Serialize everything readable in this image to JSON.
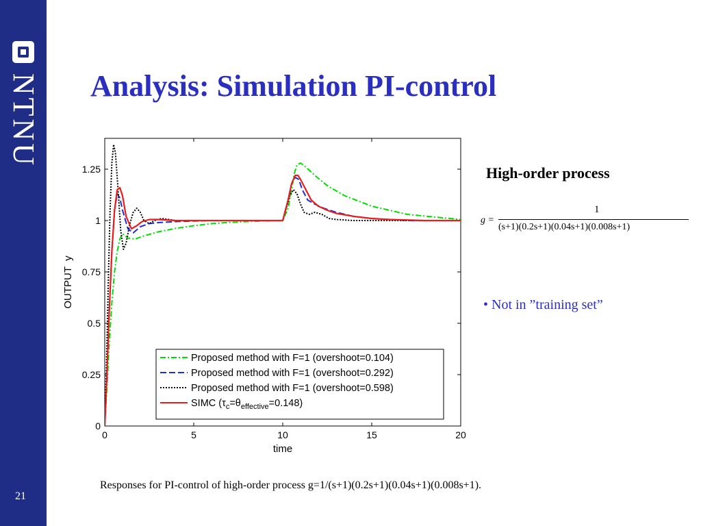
{
  "slide": {
    "title": "Analysis: Simulation PI-control",
    "page_number": "21",
    "logo_text": "NTNU"
  },
  "side_panel": {
    "heading": "High-order process",
    "formula": {
      "lhs": "g =",
      "numerator": "1",
      "denominator": "(s+1)(0.2s+1)(0.04s+1)(0.008s+1)"
    },
    "bullet": "• Not in ”training set”"
  },
  "caption": "Responses for PI-control of high-order process g=1/(s+1)(0.2s+1)(0.04s+1)(0.008s+1).",
  "chart_data": {
    "type": "line",
    "title": "",
    "xlabel": "time",
    "ylabel": "OUTPUT  y",
    "xlim": [
      0,
      20
    ],
    "ylim": [
      0,
      1.4
    ],
    "xticks": [
      0,
      5,
      10,
      15,
      20
    ],
    "xtick_labels": [
      "0",
      "5",
      "10",
      "15",
      "20"
    ],
    "yticks": [
      0,
      0.25,
      0.5,
      0.75,
      1,
      1.25
    ],
    "ytick_labels": [
      "0",
      "0.25",
      "0.5",
      "0.75",
      "1",
      "1.25"
    ],
    "grid": false,
    "legend_position": "bottom-right",
    "series": [
      {
        "name": "Proposed method with F=1 (overshoot=0.104)",
        "color": "#00dd00",
        "dash": "dashdot",
        "x": [
          0,
          0.1,
          0.25,
          0.4,
          0.55,
          0.7,
          0.85,
          1.0,
          1.3,
          1.7,
          2.2,
          3,
          4,
          5,
          6,
          7,
          8,
          9,
          10,
          10.3,
          10.5,
          10.65,
          10.8,
          11.0,
          11.3,
          11.8,
          12.5,
          13.5,
          15,
          17,
          20
        ],
        "y": [
          0,
          0.15,
          0.4,
          0.6,
          0.75,
          0.85,
          0.91,
          0.935,
          0.915,
          0.91,
          0.925,
          0.945,
          0.962,
          0.975,
          0.985,
          0.991,
          0.995,
          0.998,
          1.0,
          1.06,
          1.15,
          1.23,
          1.27,
          1.28,
          1.26,
          1.22,
          1.17,
          1.12,
          1.07,
          1.03,
          1.005
        ]
      },
      {
        "name": "Proposed method with F=1 (overshoot=0.292)",
        "color": "#1f2dd6",
        "dash": "dashed",
        "x": [
          0,
          0.1,
          0.25,
          0.4,
          0.55,
          0.7,
          0.85,
          1.0,
          1.3,
          1.6,
          2.0,
          2.5,
          3,
          4,
          6,
          8,
          10,
          10.3,
          10.5,
          10.7,
          10.9,
          11.1,
          11.4,
          11.8,
          12.3,
          13,
          14,
          15,
          17,
          20
        ],
        "y": [
          0,
          0.2,
          0.55,
          0.85,
          1.05,
          1.13,
          1.11,
          1.05,
          0.96,
          0.94,
          0.97,
          0.985,
          0.99,
          0.995,
          1.0,
          1.0,
          1.0,
          1.1,
          1.18,
          1.21,
          1.2,
          1.15,
          1.1,
          1.08,
          1.06,
          1.04,
          1.02,
          1.01,
          1.0,
          1.0
        ]
      },
      {
        "name": "Proposed method with F=1 (overshoot=0.598)",
        "color": "#000000",
        "dash": "dotted",
        "x": [
          0,
          0.1,
          0.2,
          0.3,
          0.4,
          0.5,
          0.6,
          0.75,
          0.9,
          1.05,
          1.2,
          1.4,
          1.6,
          1.8,
          2.0,
          2.2,
          2.5,
          2.8,
          3.2,
          3.6,
          4,
          5,
          6,
          8,
          10,
          10.2,
          10.4,
          10.6,
          10.8,
          11.0,
          11.2,
          11.5,
          11.8,
          12.2,
          12.6,
          13,
          14,
          16,
          20
        ],
        "y": [
          0,
          0.3,
          0.7,
          1.05,
          1.28,
          1.37,
          1.33,
          1.15,
          0.95,
          0.86,
          0.89,
          0.98,
          1.04,
          1.06,
          1.04,
          1.0,
          0.985,
          1.0,
          1.01,
          1.005,
          1.0,
          1.0,
          1.0,
          1.0,
          1.0,
          1.06,
          1.12,
          1.15,
          1.13,
          1.08,
          1.04,
          1.03,
          1.04,
          1.03,
          1.01,
          1.005,
          1.0,
          1.0,
          1.0
        ]
      },
      {
        "name": "SIMC (τc=θeffective=0.148)",
        "label_parts": {
          "before": "SIMC (",
          "tau": "τ",
          "sub_c": "c",
          "eq": "=θ",
          "sub_eff": "effective",
          "after": "=0.148)"
        },
        "color": "#e81e1e",
        "dash": "solid",
        "x": [
          0,
          0.1,
          0.25,
          0.4,
          0.55,
          0.7,
          0.85,
          1.0,
          1.2,
          1.5,
          1.8,
          2.1,
          2.5,
          3,
          4,
          6,
          8,
          10,
          10.3,
          10.5,
          10.7,
          10.85,
          11.0,
          11.3,
          11.6,
          12.0,
          12.5,
          13,
          14,
          15,
          16,
          18,
          20
        ],
        "y": [
          0,
          0.2,
          0.55,
          0.85,
          1.05,
          1.15,
          1.16,
          1.12,
          1.02,
          0.96,
          0.975,
          0.995,
          1.005,
          1.005,
          1.0,
          1.0,
          1.0,
          1.0,
          1.1,
          1.18,
          1.22,
          1.22,
          1.2,
          1.15,
          1.1,
          1.07,
          1.05,
          1.035,
          1.02,
          1.01,
          1.005,
          1.0,
          1.0
        ]
      }
    ]
  }
}
